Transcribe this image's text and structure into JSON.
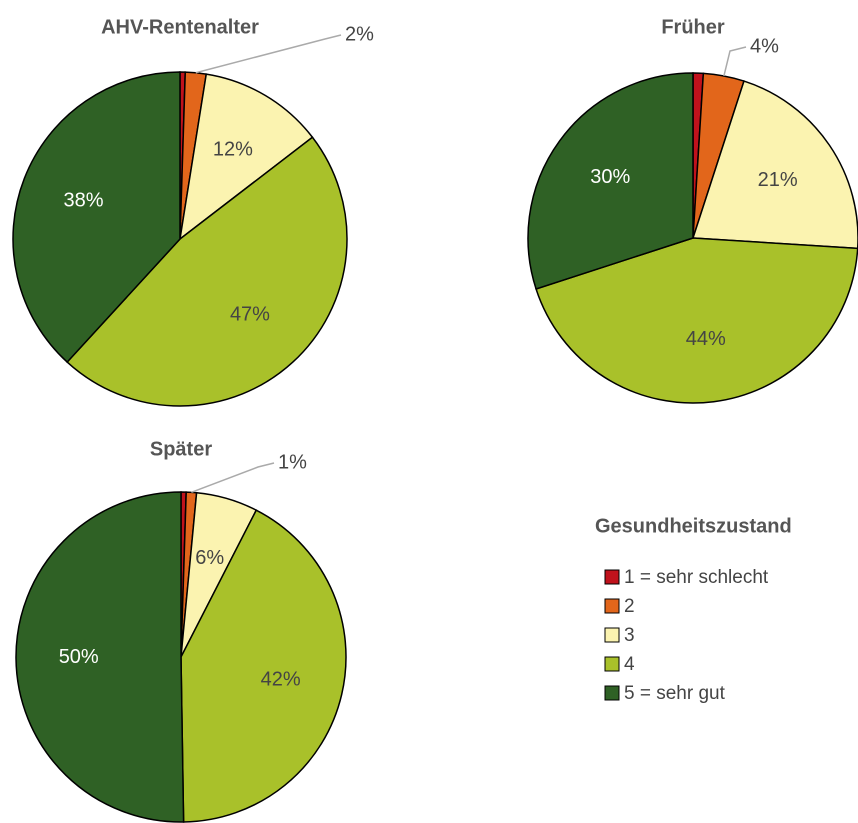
{
  "chart_data": [
    {
      "type": "pie",
      "title": "AHV-Rentenalter",
      "categories": [
        "1 = sehr schlecht",
        "2",
        "3",
        "4",
        "5 = sehr gut"
      ],
      "values": [
        0.5,
        2,
        12,
        47,
        38
      ],
      "value_labels": [
        null,
        "2%",
        "12%",
        "47%",
        "38%"
      ],
      "colors": [
        "#c0121c",
        "#e2661b",
        "#fbf3b0",
        "#a9c12a",
        "#2f6125"
      ],
      "legend_title": "Gesundheitszustand"
    },
    {
      "type": "pie",
      "title": "Früher",
      "categories": [
        "1 = sehr schlecht",
        "2",
        "3",
        "4",
        "5 = sehr gut"
      ],
      "values": [
        1,
        4,
        21,
        44,
        30
      ],
      "value_labels": [
        null,
        "4%",
        "21%",
        "44%",
        "30%"
      ],
      "colors": [
        "#c0121c",
        "#e2661b",
        "#fbf3b0",
        "#a9c12a",
        "#2f6125"
      ]
    },
    {
      "type": "pie",
      "title": "Später",
      "categories": [
        "1 = sehr schlecht",
        "2",
        "3",
        "4",
        "5 = sehr gut"
      ],
      "values": [
        0.5,
        1,
        6,
        42,
        50
      ],
      "value_labels": [
        null,
        "1%",
        "6%",
        "42%",
        "50%"
      ],
      "colors": [
        "#c0121c",
        "#e2661b",
        "#fbf3b0",
        "#a9c12a",
        "#2f6125"
      ]
    }
  ]
}
